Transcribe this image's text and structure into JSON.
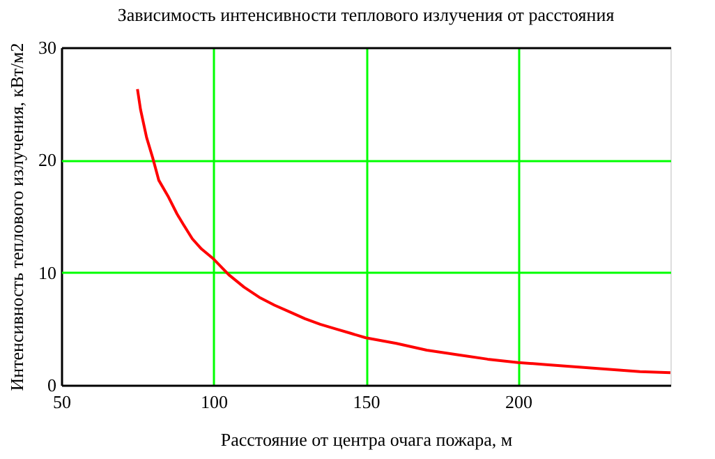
{
  "chart_data": {
    "type": "line",
    "title": "Зависимость интенсивности теплового излучения от расстояния",
    "xlabel": "Расстояние от центра очага пожара, м",
    "ylabel": "Интенсивность теплового излучения, кВт/м2",
    "x": [
      75,
      76,
      78,
      80,
      82,
      85,
      88,
      90,
      93,
      96,
      100,
      105,
      110,
      115,
      120,
      125,
      130,
      135,
      140,
      145,
      150,
      160,
      170,
      180,
      190,
      200,
      210,
      220,
      230,
      240,
      250
    ],
    "series": [
      {
        "color": "#ff0000",
        "values": [
          26.3,
          24.5,
          22,
          20.2,
          18.2,
          16.8,
          15.2,
          14.3,
          13,
          12.1,
          11.2,
          9.8,
          8.7,
          7.8,
          7.1,
          6.5,
          5.9,
          5.4,
          5.0,
          4.6,
          4.2,
          3.7,
          3.1,
          2.7,
          2.3,
          2.0,
          1.8,
          1.6,
          1.4,
          1.2,
          1.1
        ]
      }
    ],
    "xlim": [
      50,
      250
    ],
    "xticks": [
      50,
      100,
      150,
      200
    ],
    "ylim": [
      0,
      30
    ],
    "yticks": [
      0,
      10,
      20,
      30
    ],
    "grid": true,
    "marker": "none",
    "line_style": "solid"
  }
}
